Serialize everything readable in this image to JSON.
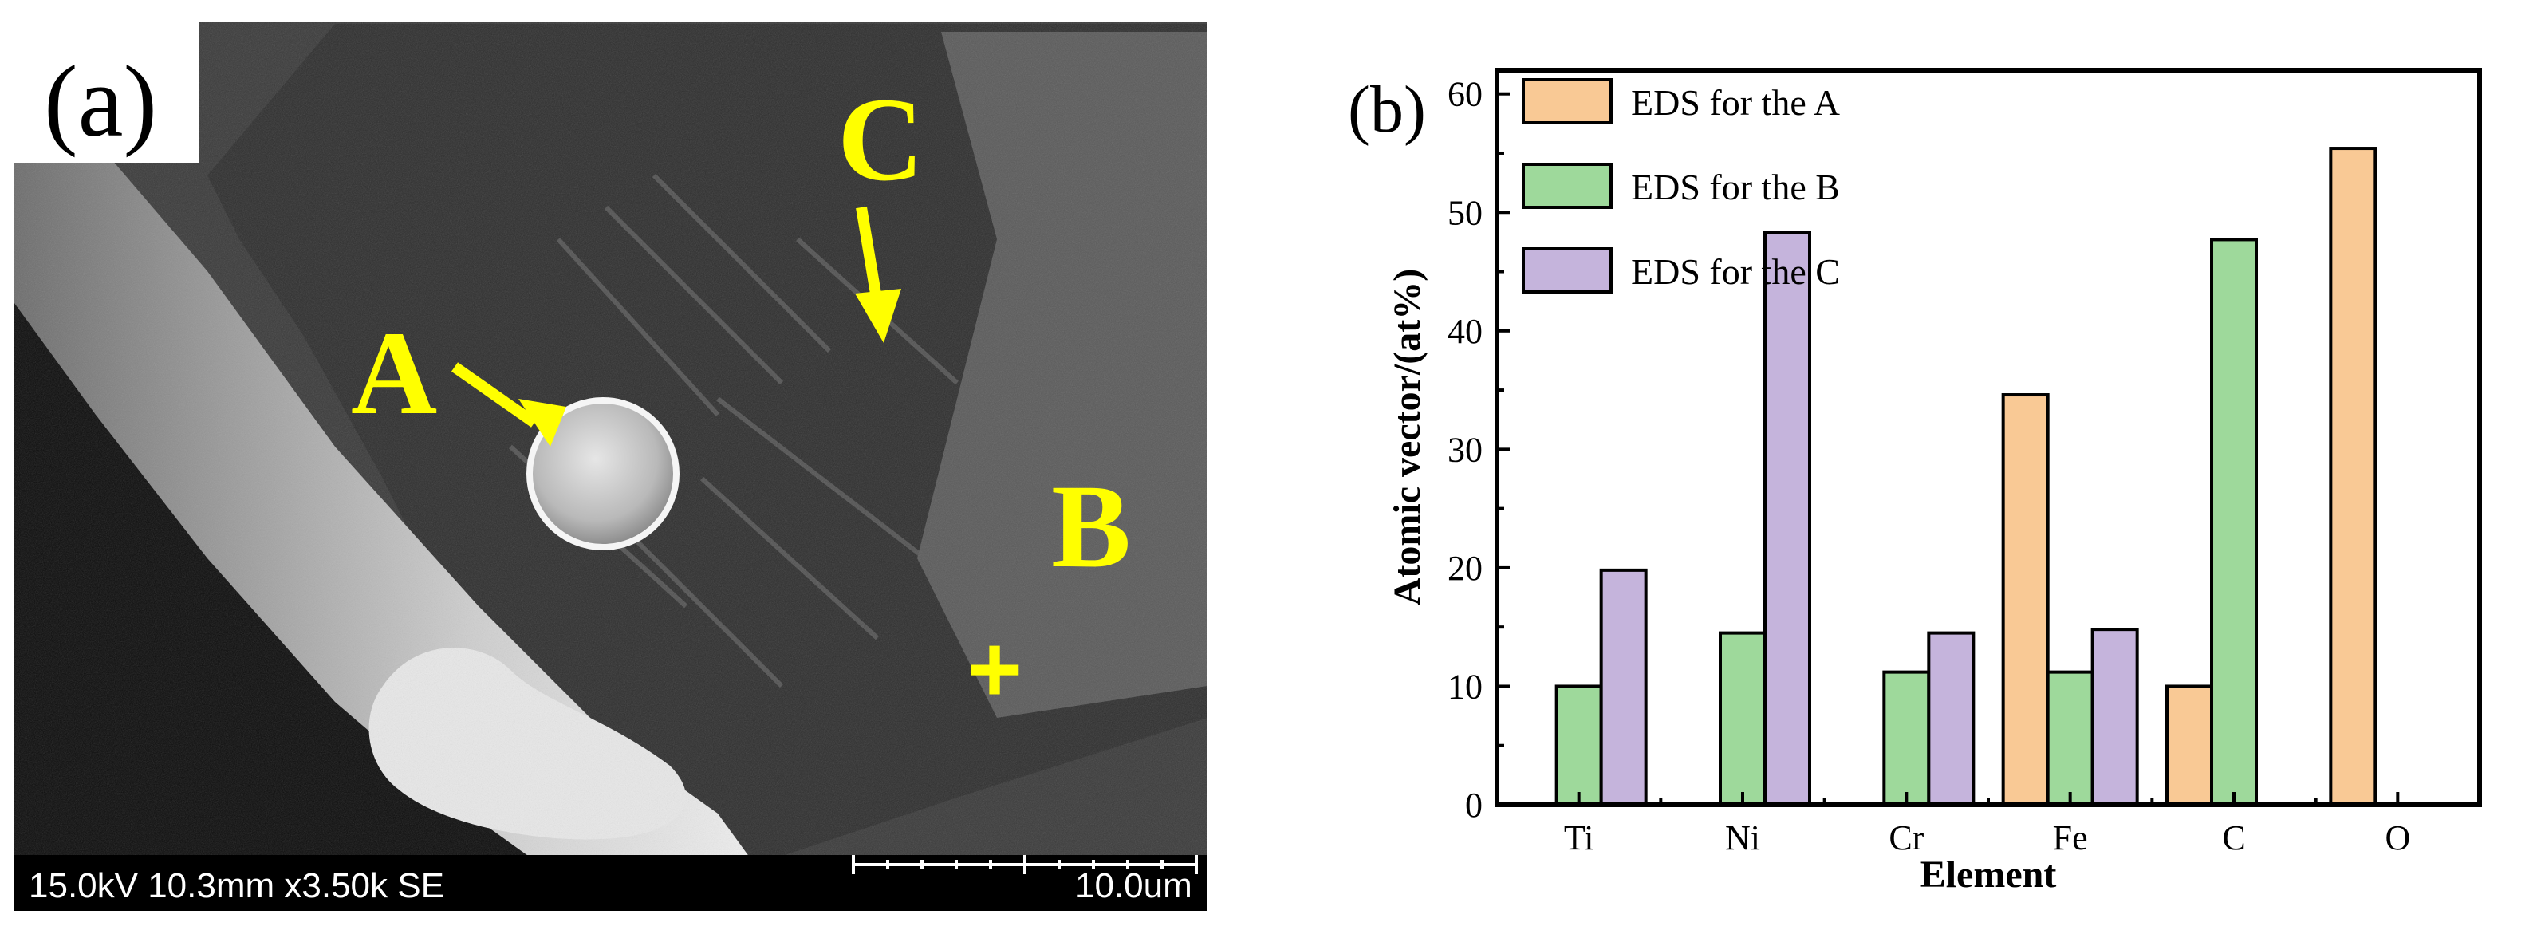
{
  "panel_a": {
    "label": "(a)",
    "markers": {
      "a": "A",
      "b": "B",
      "c": "C",
      "cross": "+"
    },
    "info_bar": {
      "left": "15.0kV 10.3mm x3.50k SE",
      "right": "10.0um"
    },
    "colors": {
      "marker": "#ffff00",
      "sem_bg": "#3a3a3a"
    }
  },
  "panel_b": {
    "label": "(b)"
  },
  "chart_data": {
    "type": "bar",
    "xlabel": "Element",
    "ylabel": "Atomic vector/(at%)",
    "ylim": [
      0,
      62
    ],
    "yticks": [
      0,
      10,
      20,
      30,
      40,
      50,
      60
    ],
    "categories": [
      "Ti",
      "Ni",
      "Cr",
      "Fe",
      "C",
      "O"
    ],
    "legend_position": "top-left",
    "series": [
      {
        "name": "EDS for the A",
        "color": "#f9c995",
        "values": [
          null,
          null,
          null,
          34.6,
          10.0,
          55.4
        ]
      },
      {
        "name": "EDS for the B",
        "color": "#9ed99b",
        "values": [
          10.0,
          14.5,
          11.2,
          11.2,
          47.7,
          null
        ]
      },
      {
        "name": "EDS for the C",
        "color": "#c5b4dc",
        "values": [
          19.8,
          48.3,
          14.5,
          14.8,
          null,
          null
        ]
      }
    ]
  }
}
